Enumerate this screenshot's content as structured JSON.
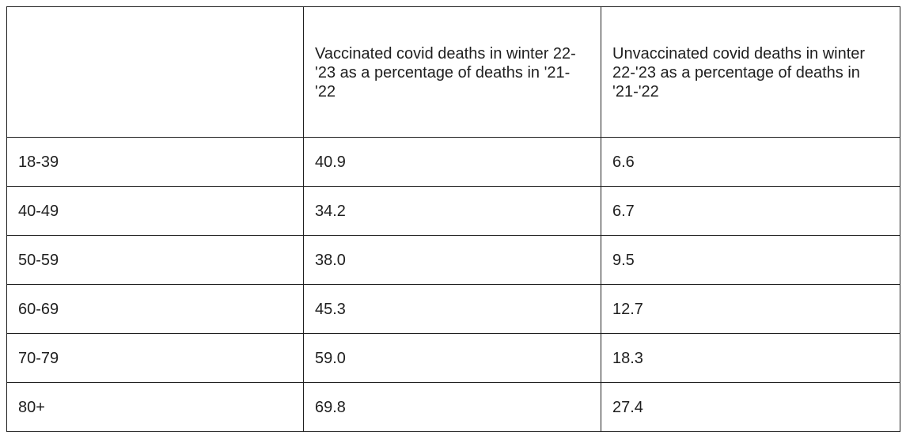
{
  "chart_data": {
    "type": "table",
    "columns": [
      "",
      "Vaccinated covid deaths in winter 22-'23 as a percentage of deaths in '21-'22",
      "Unvaccinated covid deaths in winter 22-'23 as a percentage of deaths in '21-'22"
    ],
    "rows": [
      [
        "18-39",
        "40.9",
        "6.6"
      ],
      [
        "40-49",
        "34.2",
        "6.7"
      ],
      [
        "50-59",
        "38.0",
        "9.5"
      ],
      [
        "60-69",
        "45.3",
        "12.7"
      ],
      [
        "70-79",
        "59.0",
        "18.3"
      ],
      [
        "80+",
        "69.8",
        "27.4"
      ]
    ]
  }
}
